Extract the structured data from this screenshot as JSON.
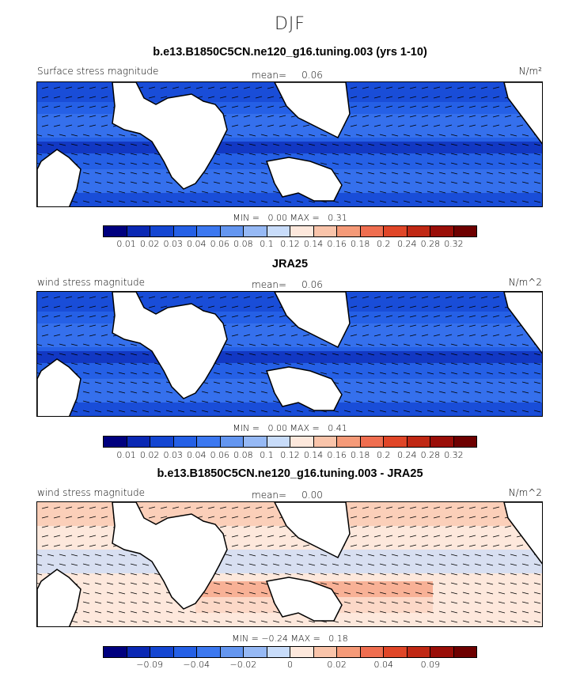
{
  "figure": {
    "season": "DJF",
    "panels": [
      {
        "title": "b.e13.B1850C5CN.ne120_g16.tuning.003 (yrs 1-10)",
        "left_label": "Surface stress magnitude",
        "mean_label": "mean=",
        "mean_value": "0.06",
        "units": "N/m²",
        "stats": "MIN =   0.00 MAX =   0.31",
        "colorbar": {
          "labels": [
            "0.01",
            "0.02",
            "0.03",
            "0.04",
            "0.06",
            "0.08",
            "0.1",
            "0.12",
            "0.14",
            "0.16",
            "0.18",
            "0.2",
            "0.24",
            "0.28",
            "0.32"
          ],
          "colors": [
            "#00007f",
            "#0a28b4",
            "#1446d2",
            "#2560e6",
            "#3c78f0",
            "#6496f0",
            "#96b9f5",
            "#c8dcfa",
            "#fde8dc",
            "#f9c4aa",
            "#f59a78",
            "#ef6e50",
            "#e04628",
            "#c02814",
            "#9a0e08",
            "#6e0000"
          ]
        }
      },
      {
        "title": "JRA25",
        "left_label": "wind stress magnitude",
        "mean_label": "mean=",
        "mean_value": "0.06",
        "units": "N/m^2",
        "stats": "MIN =   0.00 MAX =   0.41",
        "colorbar": {
          "labels": [
            "0.01",
            "0.02",
            "0.03",
            "0.04",
            "0.06",
            "0.08",
            "0.1",
            "0.12",
            "0.14",
            "0.16",
            "0.18",
            "0.2",
            "0.24",
            "0.28",
            "0.32"
          ],
          "colors": [
            "#00007f",
            "#0a28b4",
            "#1446d2",
            "#2560e6",
            "#3c78f0",
            "#6496f0",
            "#96b9f5",
            "#c8dcfa",
            "#fde8dc",
            "#f9c4aa",
            "#f59a78",
            "#ef6e50",
            "#e04628",
            "#c02814",
            "#9a0e08",
            "#6e0000"
          ]
        }
      },
      {
        "title": "b.e13.B1850C5CN.ne120_g16.tuning.003 - JRA25",
        "left_label": "wind stress magnitude",
        "mean_label": "mean=",
        "mean_value": "0.00",
        "units": "N/m^2",
        "stats": "MIN = −0.24 MAX =   0.18",
        "colorbar": {
          "labels": [
            "−0.09",
            "−0.04",
            "−0.02",
            "0",
            "0.02",
            "0.04",
            "0.09"
          ],
          "colors": [
            "#00007f",
            "#0a28b4",
            "#1446d2",
            "#2560e6",
            "#3c78f0",
            "#6496f0",
            "#96b9f5",
            "#c8dcfa",
            "#fde8dc",
            "#f9c4aa",
            "#f59a78",
            "#ef6e50",
            "#e04628",
            "#c02814",
            "#9a0e08",
            "#6e0000"
          ]
        }
      }
    ]
  }
}
